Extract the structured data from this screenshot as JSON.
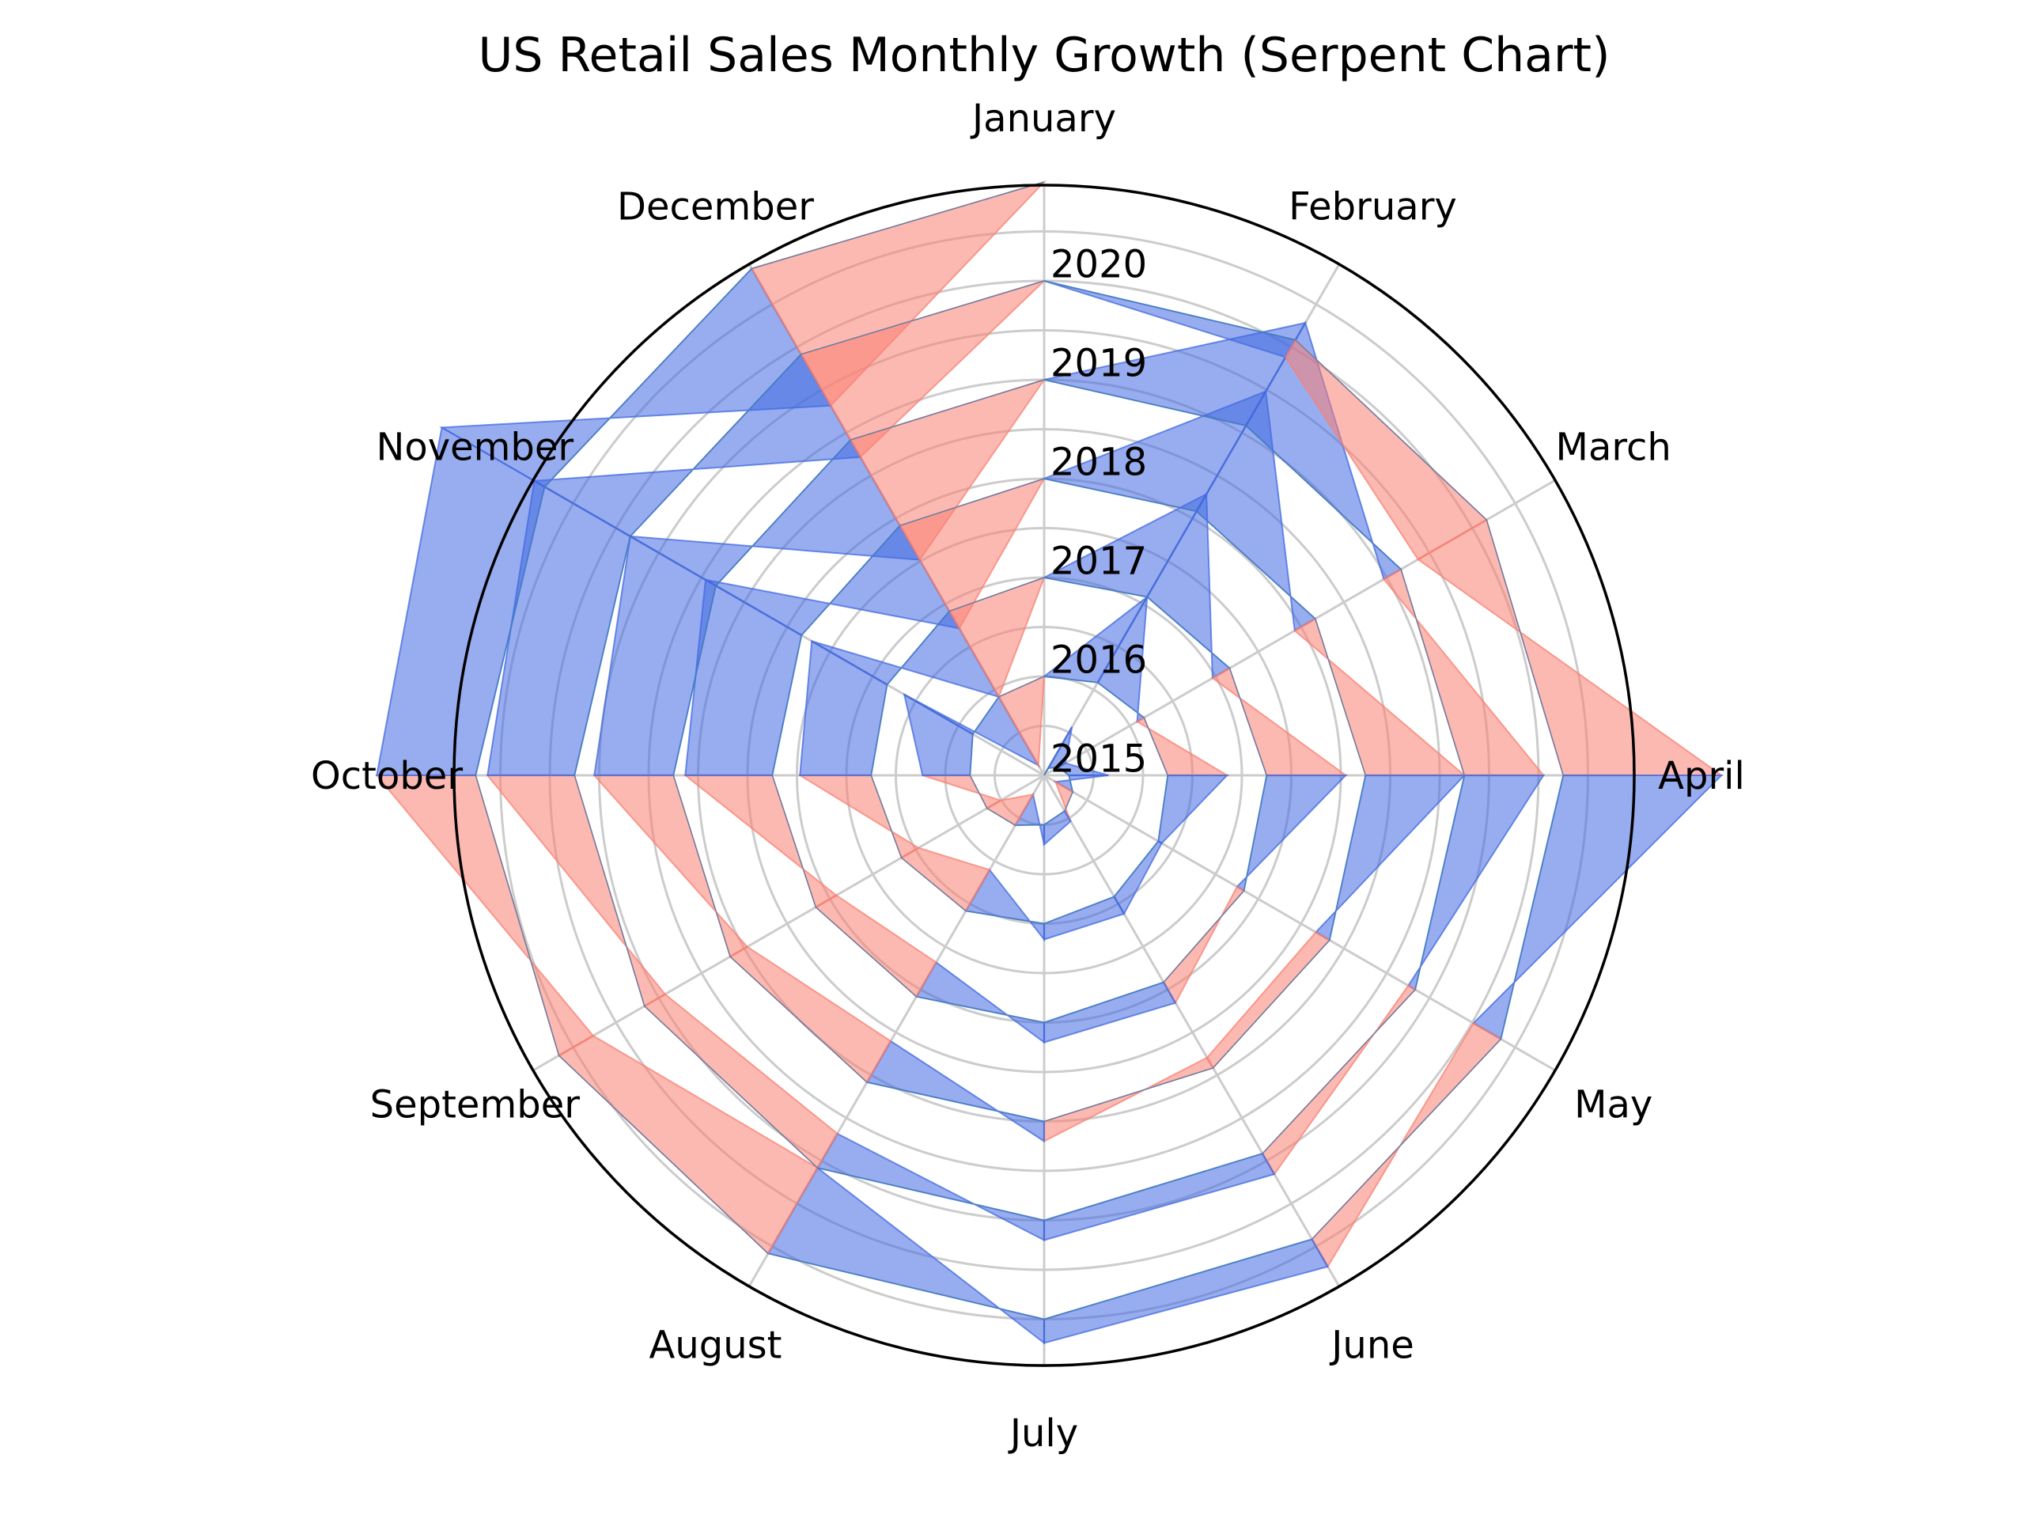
{
  "chart_data": {
    "type": "serpent",
    "title": "US Retail Sales Monthly Growth (Serpent Chart)",
    "categories": [
      "January",
      "February",
      "March",
      "April",
      "May",
      "June",
      "July",
      "August",
      "September",
      "October",
      "November",
      "December"
    ],
    "years": [
      "2015",
      "2016",
      "2017",
      "2018",
      "2019",
      "2020"
    ],
    "growth": [
      [
        0.0,
        0.12,
        0.02,
        0.1,
        -0.05,
        0.03,
        0.05,
        -0.09,
        -0.04,
        0.12,
        0.2,
        -0.2
      ],
      [
        0.0,
        0.25,
        -0.02,
        0.15,
        0.01,
        0.05,
        0.04,
        -0.12,
        -0.05,
        0.18,
        0.22,
        -0.25
      ],
      [
        0.0,
        0.3,
        -0.05,
        0.2,
        -0.02,
        0.06,
        0.05,
        -0.1,
        -0.06,
        0.22,
        0.28,
        -0.3
      ],
      [
        0.0,
        0.35,
        -0.06,
        0.25,
        -0.04,
        -0.03,
        0.05,
        -0.12,
        -0.05,
        0.2,
        0.25,
        -0.35
      ],
      [
        0.0,
        0.3,
        -0.05,
        0.2,
        -0.02,
        0.06,
        0.05,
        -0.1,
        -0.06,
        0.22,
        0.28,
        -0.3
      ],
      [
        0.0,
        -0.05,
        -0.2,
        0.4,
        -0.08,
        0.08,
        0.06,
        -0.25,
        -0.1,
        0.25,
        0.3,
        -0.4
      ]
    ],
    "colors": {
      "positive": "#4169e1",
      "negative": "#fa8072",
      "base_line": "#4682b4",
      "grid": "#cccccc"
    },
    "grid": true
  }
}
